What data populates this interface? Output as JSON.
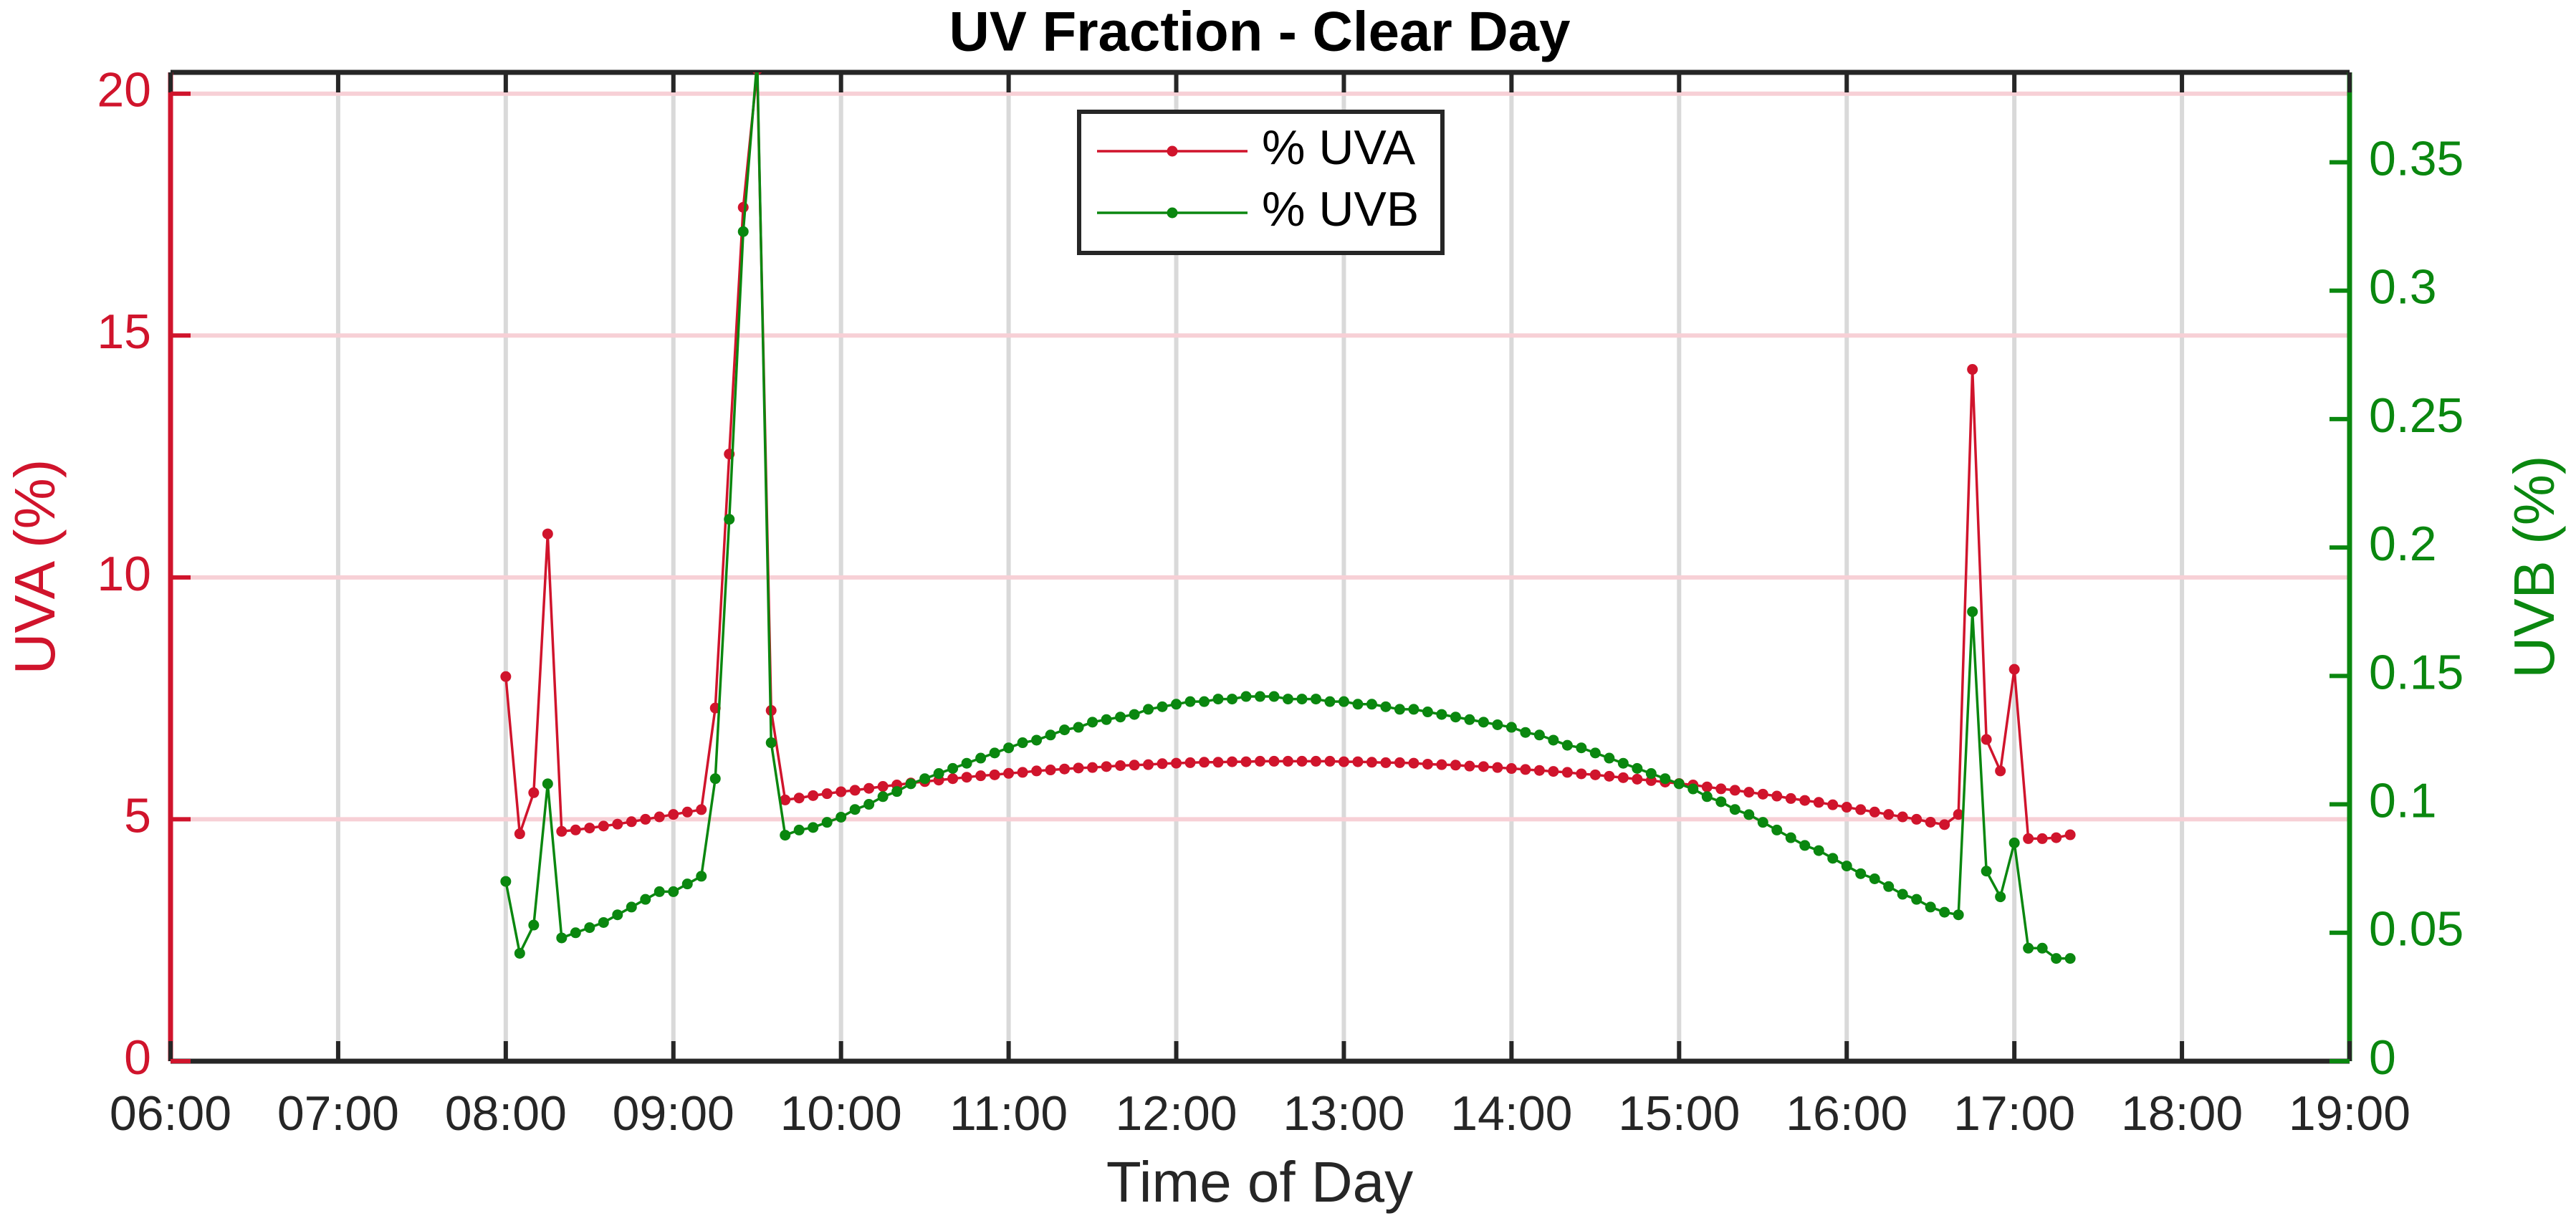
{
  "chart_data": {
    "type": "line",
    "title": "UV Fraction - Clear Day",
    "xlabel": "Time of Day",
    "ylabel": "UVA (%)",
    "y2label": "UVB (%)",
    "x": [
      "08:00",
      "08:05",
      "08:10",
      "08:15",
      "08:20",
      "08:25",
      "08:30",
      "08:35",
      "08:40",
      "08:45",
      "08:50",
      "08:55",
      "09:00",
      "09:05",
      "09:10",
      "09:15",
      "09:20",
      "09:25",
      "09:30",
      "09:35",
      "09:40",
      "09:45",
      "09:50",
      "09:55",
      "10:00",
      "10:05",
      "10:10",
      "10:15",
      "10:20",
      "10:25",
      "10:30",
      "10:35",
      "10:40",
      "10:45",
      "10:50",
      "10:55",
      "11:00",
      "11:05",
      "11:10",
      "11:15",
      "11:20",
      "11:25",
      "11:30",
      "11:35",
      "11:40",
      "11:45",
      "11:50",
      "11:55",
      "12:00",
      "12:05",
      "12:10",
      "12:15",
      "12:20",
      "12:25",
      "12:30",
      "12:35",
      "12:40",
      "12:45",
      "12:50",
      "12:55",
      "13:00",
      "13:05",
      "13:10",
      "13:15",
      "13:20",
      "13:25",
      "13:30",
      "13:35",
      "13:40",
      "13:45",
      "13:50",
      "13:55",
      "14:00",
      "14:05",
      "14:10",
      "14:15",
      "14:20",
      "14:25",
      "14:30",
      "14:35",
      "14:40",
      "14:45",
      "14:50",
      "14:55",
      "15:00",
      "15:05",
      "15:10",
      "15:15",
      "15:20",
      "15:25",
      "15:30",
      "15:35",
      "15:40",
      "15:45",
      "15:50",
      "15:55",
      "16:00",
      "16:05",
      "16:10",
      "16:15",
      "16:20",
      "16:25",
      "16:30",
      "16:35",
      "16:40",
      "16:45",
      "16:50",
      "16:55",
      "17:00",
      "17:05",
      "17:10",
      "17:15",
      "17:20"
    ],
    "series": [
      {
        "name": "% UVA",
        "color": "#d0142c",
        "axis": "y",
        "values": [
          7.95,
          4.7,
          5.55,
          10.9,
          4.75,
          4.78,
          4.82,
          4.86,
          4.9,
          4.95,
          5.0,
          5.05,
          5.1,
          5.15,
          5.2,
          7.3,
          12.55,
          17.65,
          20.5,
          7.25,
          5.4,
          5.44,
          5.49,
          5.53,
          5.57,
          5.6,
          5.64,
          5.68,
          5.71,
          5.75,
          5.78,
          5.81,
          5.84,
          5.87,
          5.9,
          5.92,
          5.95,
          5.97,
          6.0,
          6.02,
          6.04,
          6.06,
          6.07,
          6.09,
          6.11,
          6.12,
          6.13,
          6.15,
          6.16,
          6.17,
          6.18,
          6.18,
          6.19,
          6.19,
          6.2,
          6.2,
          6.2,
          6.2,
          6.2,
          6.2,
          6.19,
          6.19,
          6.18,
          6.17,
          6.17,
          6.16,
          6.14,
          6.13,
          6.12,
          6.1,
          6.09,
          6.07,
          6.05,
          6.03,
          6.01,
          5.99,
          5.97,
          5.94,
          5.92,
          5.89,
          5.86,
          5.83,
          5.8,
          5.77,
          5.74,
          5.71,
          5.67,
          5.63,
          5.6,
          5.56,
          5.52,
          5.48,
          5.43,
          5.39,
          5.35,
          5.3,
          5.25,
          5.2,
          5.15,
          5.1,
          5.05,
          5.0,
          4.94,
          4.89,
          5.1,
          14.3,
          6.65,
          6.0,
          8.1,
          4.6,
          4.6,
          4.62,
          4.68
        ]
      },
      {
        "name": "% UVB",
        "color": "#0a870f",
        "axis": "y2",
        "values": [
          0.07,
          0.042,
          0.053,
          0.108,
          0.048,
          0.05,
          0.052,
          0.054,
          0.057,
          0.06,
          0.063,
          0.066,
          0.066,
          0.069,
          0.072,
          0.11,
          0.211,
          0.323,
          0.39,
          0.124,
          0.088,
          0.09,
          0.091,
          0.093,
          0.095,
          0.098,
          0.1,
          0.103,
          0.105,
          0.108,
          0.11,
          0.112,
          0.114,
          0.116,
          0.118,
          0.12,
          0.122,
          0.124,
          0.125,
          0.127,
          0.129,
          0.13,
          0.132,
          0.133,
          0.134,
          0.135,
          0.137,
          0.138,
          0.139,
          0.14,
          0.14,
          0.141,
          0.141,
          0.142,
          0.142,
          0.142,
          0.141,
          0.141,
          0.141,
          0.14,
          0.14,
          0.139,
          0.139,
          0.138,
          0.137,
          0.137,
          0.136,
          0.135,
          0.134,
          0.133,
          0.132,
          0.131,
          0.13,
          0.128,
          0.127,
          0.125,
          0.123,
          0.122,
          0.12,
          0.118,
          0.116,
          0.114,
          0.112,
          0.11,
          0.108,
          0.106,
          0.103,
          0.101,
          0.098,
          0.096,
          0.093,
          0.09,
          0.087,
          0.084,
          0.082,
          0.079,
          0.076,
          0.073,
          0.071,
          0.068,
          0.065,
          0.063,
          0.06,
          0.058,
          0.057,
          0.175,
          0.074,
          0.064,
          0.085,
          0.044,
          0.044,
          0.04,
          0.04
        ]
      }
    ],
    "xlim": [
      "06:00",
      "19:00"
    ],
    "xticks": [
      "06:00",
      "07:00",
      "08:00",
      "09:00",
      "10:00",
      "11:00",
      "12:00",
      "13:00",
      "14:00",
      "15:00",
      "16:00",
      "17:00",
      "18:00",
      "19:00"
    ],
    "ylim": [
      0,
      20.44
    ],
    "yticks": [
      0,
      5,
      10,
      15,
      20
    ],
    "y2lim": [
      0,
      0.385
    ],
    "y2ticks": [
      0,
      0.05,
      0.1,
      0.15,
      0.2,
      0.25,
      0.3,
      0.35
    ],
    "grid": true,
    "legend": "upper center"
  }
}
